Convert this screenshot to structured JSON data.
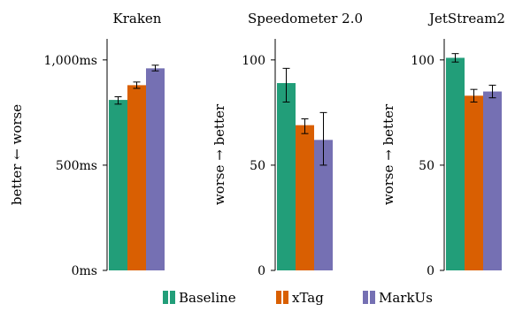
{
  "chart_data": [
    {
      "type": "bar",
      "title": "Kraken",
      "ylabel": "better ← worse",
      "ylim": [
        0,
        1100
      ],
      "yticks": [
        0,
        500,
        1000
      ],
      "yticklabels": [
        "0ms",
        "500ms",
        "1,000ms"
      ],
      "categories": [
        "Baseline",
        "xTag",
        "MarkUs"
      ],
      "values": [
        810,
        880,
        960
      ],
      "errors": [
        [
          790,
          825
        ],
        [
          865,
          895
        ],
        [
          948,
          975
        ]
      ]
    },
    {
      "type": "bar",
      "title": "Speedometer 2.0",
      "ylabel": "worse → better",
      "ylim": [
        0,
        110
      ],
      "yticks": [
        0,
        50,
        100
      ],
      "yticklabels": [
        "0",
        "50",
        "100"
      ],
      "categories": [
        "Baseline",
        "xTag",
        "MarkUs"
      ],
      "values": [
        89,
        69,
        62
      ],
      "errors": [
        [
          80,
          96
        ],
        [
          65,
          72
        ],
        [
          50,
          75
        ]
      ]
    },
    {
      "type": "bar",
      "title": "JetStream2",
      "ylabel": "worse → better",
      "ylim": [
        0,
        110
      ],
      "yticks": [
        0,
        50,
        100
      ],
      "yticklabels": [
        "0",
        "50",
        "100"
      ],
      "categories": [
        "Baseline",
        "xTag",
        "MarkUs"
      ],
      "values": [
        101,
        83,
        85
      ],
      "errors": [
        [
          99,
          103
        ],
        [
          80,
          86
        ],
        [
          82,
          88
        ]
      ]
    }
  ],
  "legend": {
    "position": "bottom",
    "entries": [
      {
        "label": "Baseline",
        "color": "#229e79"
      },
      {
        "label": "xTag",
        "color": "#d95f02"
      },
      {
        "label": "MarkUs",
        "color": "#7570b3"
      }
    ]
  }
}
